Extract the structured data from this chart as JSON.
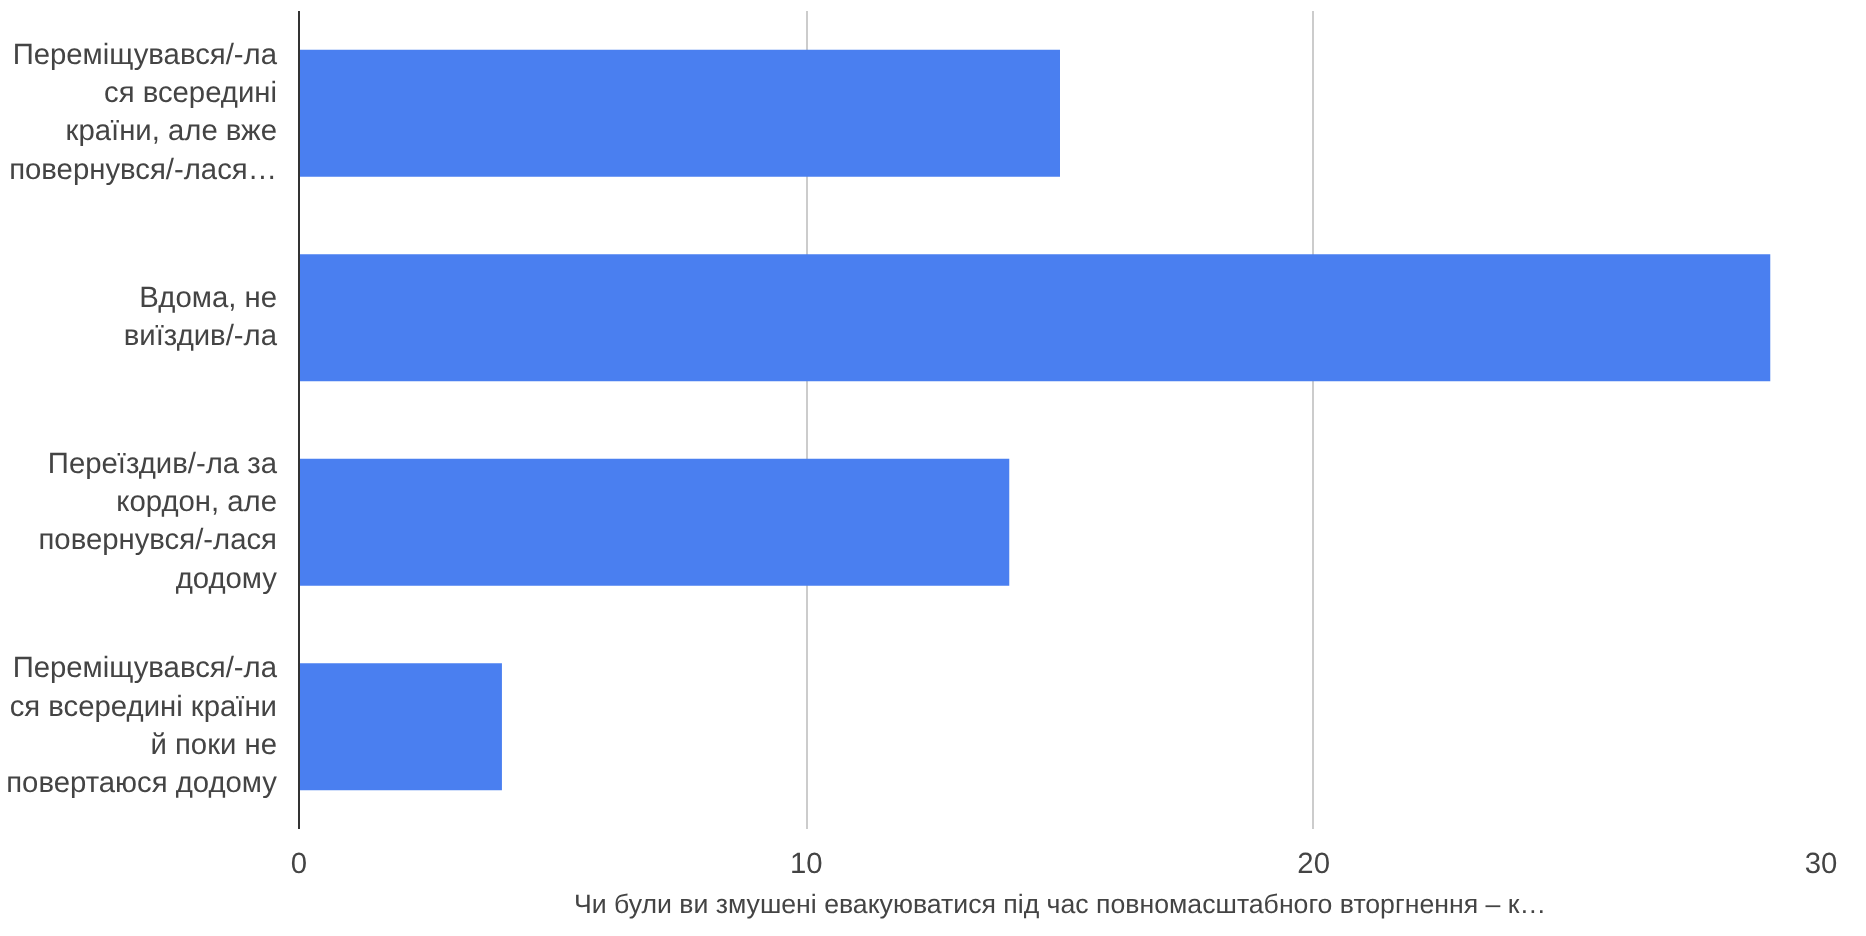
{
  "chart_data": {
    "type": "bar",
    "orientation": "horizontal",
    "categories": [
      "Переміщувався/-ла\nся всередині\nкраїни, але вже\nповернувся/-лася…",
      "Вдома, не\nвиїздив/-ла",
      "Переїздив/-ла за\nкордон, але\nповернувся/-лася\nдодому",
      "Переміщувався/-ла\nся всередині країни\nй поки не\nповертаюся додому"
    ],
    "values": [
      15,
      29,
      14,
      4
    ],
    "color": "#4a7ff0",
    "xlim": [
      0,
      30
    ],
    "xticks": [
      0,
      10,
      20,
      30
    ],
    "grid": "x",
    "xlabel": "Чи були ви змушені евакуюватися під час повномасштабного вторгнення – к…"
  }
}
